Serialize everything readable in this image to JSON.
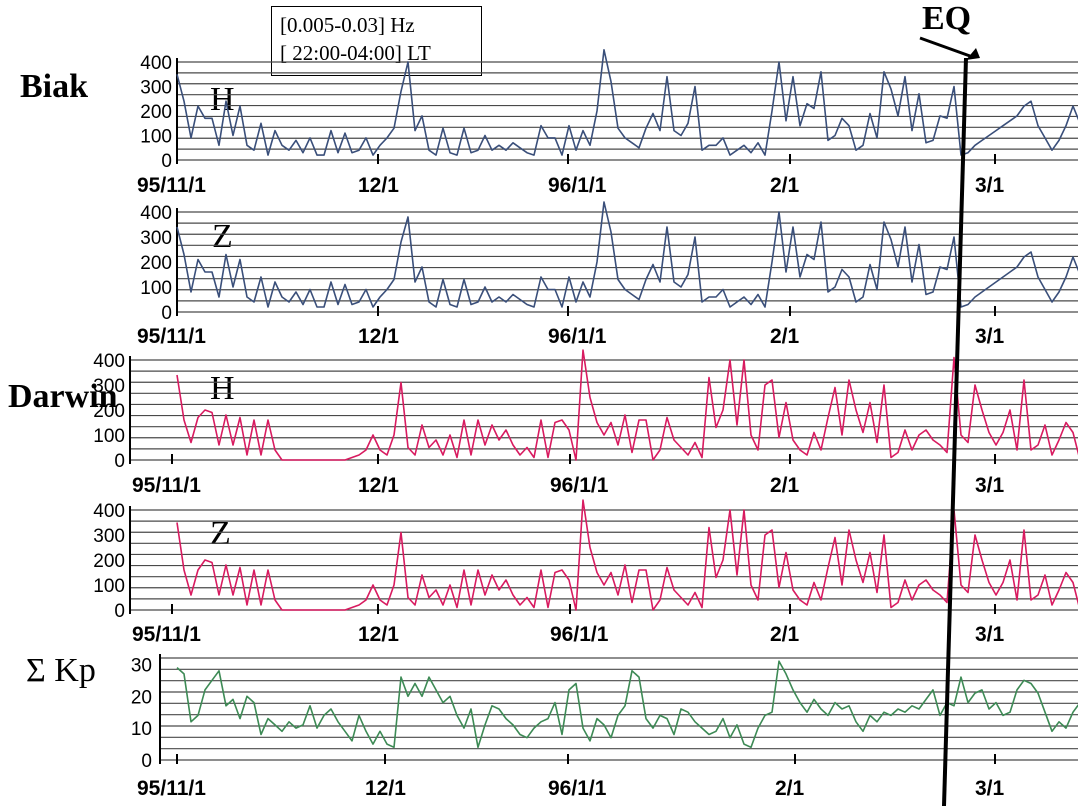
{
  "filter_box": {
    "band": "[0.005-0.03] Hz",
    "time_window": "[ 22:00-04:00] LT"
  },
  "event_marker": {
    "label": "EQ",
    "date_index": 111
  },
  "stations": [
    {
      "name": "Biak"
    },
    {
      "name": "Darwin"
    }
  ],
  "kp_label": "Σ Kp",
  "colors": {
    "biak": "#3a4f7a",
    "darwin": "#d81b60",
    "kp": "#3d8a55",
    "grid": "#4a4a4a",
    "eq": "#000000"
  },
  "chart_data": [
    {
      "type": "line",
      "station": "Biak",
      "component": "H",
      "x_start": "95/11/1",
      "x_tick_labels": [
        "95/11/1",
        "12/1",
        "96/1/1",
        "2/1",
        "3/1"
      ],
      "ylim": [
        0,
        400
      ],
      "yticks": [
        0,
        100,
        200,
        300,
        400
      ],
      "grid": true,
      "series": [
        {
          "values": [
            350,
            240,
            90,
            220,
            170,
            170,
            60,
            240,
            100,
            220,
            60,
            40,
            150,
            20,
            120,
            60,
            40,
            80,
            30,
            90,
            20,
            20,
            120,
            30,
            110,
            30,
            40,
            90,
            20,
            60,
            90,
            130,
            280,
            400,
            120,
            180,
            40,
            20,
            130,
            30,
            20,
            130,
            30,
            40,
            100,
            40,
            60,
            40,
            70,
            50,
            30,
            20,
            140,
            90,
            90,
            20,
            140,
            40,
            120,
            60,
            200,
            450,
            320,
            130,
            90,
            70,
            50,
            130,
            190,
            120,
            340,
            120,
            100,
            150,
            300,
            40,
            60,
            60,
            90,
            20,
            40,
            60,
            30,
            70,
            20,
            200,
            400,
            160,
            340,
            140,
            230,
            210,
            360,
            80,
            100,
            170,
            140,
            40,
            60,
            190,
            90,
            360,
            290,
            180,
            340,
            120,
            270,
            70,
            80,
            180,
            170,
            300,
            20,
            30,
            60,
            80,
            100,
            120,
            140,
            160,
            180,
            220,
            240,
            140,
            90,
            40,
            80,
            140,
            220,
            150,
            100
          ]
        }
      ]
    },
    {
      "type": "line",
      "station": "Biak",
      "component": "Z",
      "x_start": "95/11/1",
      "x_tick_labels": [
        "95/11/1",
        "12/1",
        "96/1/1",
        "2/1",
        "3/1"
      ],
      "ylim": [
        0,
        400
      ],
      "yticks": [
        0,
        100,
        200,
        300,
        400
      ],
      "grid": true,
      "series": [
        {
          "values": [
            340,
            230,
            80,
            210,
            160,
            160,
            60,
            230,
            100,
            210,
            60,
            40,
            140,
            20,
            120,
            60,
            40,
            80,
            30,
            90,
            20,
            20,
            120,
            30,
            110,
            30,
            40,
            90,
            20,
            60,
            90,
            130,
            280,
            380,
            120,
            180,
            40,
            20,
            130,
            30,
            20,
            130,
            30,
            40,
            100,
            40,
            60,
            40,
            70,
            50,
            30,
            20,
            140,
            90,
            90,
            20,
            140,
            40,
            120,
            60,
            200,
            440,
            320,
            130,
            90,
            70,
            50,
            130,
            190,
            120,
            340,
            120,
            100,
            150,
            300,
            40,
            60,
            60,
            90,
            20,
            40,
            60,
            30,
            70,
            20,
            200,
            400,
            160,
            340,
            140,
            230,
            210,
            360,
            80,
            100,
            170,
            140,
            40,
            60,
            190,
            90,
            360,
            290,
            180,
            340,
            120,
            270,
            70,
            80,
            180,
            170,
            300,
            20,
            30,
            60,
            80,
            100,
            120,
            140,
            160,
            180,
            220,
            240,
            140,
            90,
            40,
            80,
            140,
            220,
            150,
            100
          ]
        }
      ]
    },
    {
      "type": "line",
      "station": "Darwin",
      "component": "H",
      "x_start": "95/11/1",
      "x_tick_labels": [
        "95/11/1",
        "12/1",
        "96/1/1",
        "2/1",
        "3/1"
      ],
      "ylim": [
        0,
        400
      ],
      "yticks": [
        0,
        100,
        200,
        300,
        400
      ],
      "grid": true,
      "series": [
        {
          "values": [
            340,
            160,
            70,
            170,
            200,
            190,
            60,
            180,
            60,
            170,
            20,
            160,
            20,
            160,
            40,
            0,
            0,
            0,
            0,
            0,
            0,
            0,
            0,
            0,
            0,
            10,
            20,
            40,
            100,
            40,
            20,
            100,
            310,
            50,
            20,
            140,
            50,
            80,
            20,
            100,
            10,
            160,
            20,
            160,
            60,
            140,
            80,
            120,
            60,
            20,
            50,
            10,
            160,
            10,
            150,
            160,
            120,
            0,
            440,
            250,
            150,
            100,
            150,
            60,
            180,
            30,
            160,
            160,
            0,
            40,
            170,
            80,
            50,
            20,
            70,
            10,
            330,
            130,
            200,
            400,
            140,
            400,
            100,
            40,
            300,
            320,
            90,
            230,
            80,
            40,
            20,
            110,
            40,
            170,
            290,
            100,
            320,
            200,
            110,
            230,
            70,
            300,
            10,
            30,
            120,
            40,
            100,
            120,
            80,
            60,
            30,
            410,
            100,
            70,
            300,
            200,
            110,
            60,
            110,
            200,
            40,
            320,
            40,
            60,
            140,
            20,
            80,
            150,
            110,
            0,
            140
          ]
        }
      ]
    },
    {
      "type": "line",
      "station": "Darwin",
      "component": "Z",
      "x_start": "95/11/1",
      "x_tick_labels": [
        "95/11/1",
        "12/1",
        "96/1/1",
        "2/1",
        "3/1"
      ],
      "ylim": [
        0,
        400
      ],
      "yticks": [
        0,
        100,
        200,
        300,
        400
      ],
      "grid": true,
      "series": [
        {
          "values": [
            350,
            160,
            60,
            160,
            200,
            190,
            60,
            180,
            60,
            170,
            20,
            160,
            20,
            160,
            40,
            0,
            0,
            0,
            0,
            0,
            0,
            0,
            0,
            0,
            0,
            10,
            20,
            40,
            100,
            40,
            20,
            100,
            310,
            50,
            20,
            140,
            50,
            80,
            20,
            100,
            10,
            160,
            20,
            160,
            60,
            140,
            80,
            120,
            60,
            20,
            50,
            10,
            160,
            10,
            150,
            160,
            120,
            0,
            440,
            250,
            150,
            100,
            150,
            60,
            180,
            30,
            160,
            160,
            0,
            40,
            170,
            80,
            50,
            20,
            70,
            10,
            330,
            130,
            200,
            400,
            140,
            400,
            100,
            40,
            300,
            320,
            90,
            230,
            80,
            40,
            20,
            110,
            40,
            170,
            290,
            100,
            320,
            200,
            110,
            230,
            70,
            300,
            10,
            30,
            120,
            40,
            100,
            120,
            80,
            60,
            30,
            400,
            100,
            70,
            300,
            200,
            110,
            60,
            110,
            200,
            40,
            320,
            40,
            60,
            140,
            20,
            80,
            150,
            110,
            0,
            130
          ]
        }
      ]
    },
    {
      "type": "line",
      "station": "",
      "component": "Σ Kp",
      "x_start": "95/11/1",
      "x_tick_labels": [
        "95/11/1",
        "12/1",
        "96/1/1",
        "2/1",
        "3/1"
      ],
      "ylim": [
        0,
        32
      ],
      "yticks": [
        0,
        10,
        20,
        30
      ],
      "grid": true,
      "series": [
        {
          "values": [
            29,
            27,
            12,
            14,
            22,
            25,
            28,
            17,
            19,
            13,
            20,
            18,
            8,
            13,
            11,
            9,
            12,
            10,
            11,
            17,
            10,
            14,
            16,
            12,
            9,
            6,
            14,
            9,
            5,
            9,
            5,
            4,
            26,
            20,
            24,
            20,
            26,
            22,
            18,
            20,
            14,
            10,
            16,
            4,
            11,
            17,
            16,
            13,
            11,
            8,
            7,
            10,
            12,
            13,
            18,
            8,
            22,
            24,
            10,
            6,
            13,
            11,
            7,
            14,
            17,
            28,
            26,
            13,
            10,
            14,
            13,
            8,
            16,
            15,
            12,
            10,
            8,
            9,
            13,
            7,
            11,
            5,
            4,
            10,
            14,
            15,
            31,
            27,
            22,
            18,
            15,
            19,
            16,
            14,
            18,
            16,
            17,
            12,
            9,
            14,
            12,
            15,
            14,
            16,
            15,
            17,
            16,
            19,
            22,
            14,
            18,
            17,
            26,
            18,
            21,
            22,
            16,
            18,
            14,
            15,
            22,
            25,
            24,
            21,
            15,
            9,
            12,
            10,
            15,
            18,
            22
          ]
        }
      ]
    }
  ]
}
